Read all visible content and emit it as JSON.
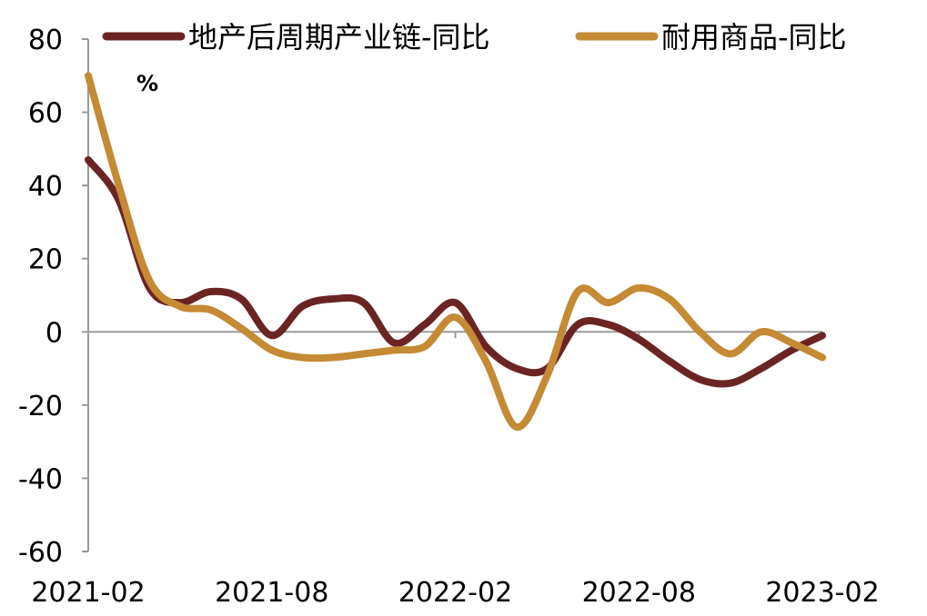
{
  "chart_data": {
    "type": "line",
    "title": "",
    "xlabel": "",
    "ylabel": "",
    "unit_label": "%",
    "ylim": [
      -60,
      80
    ],
    "yticks": [
      -60,
      -40,
      -20,
      0,
      20,
      40,
      60,
      80
    ],
    "ytick_labels": [
      "-60",
      "-40",
      "-20",
      "0",
      "20",
      "40",
      "60",
      "80"
    ],
    "xtick_labels": [
      "2021-02",
      "2021-08",
      "2022-02",
      "2022-08",
      "2023-02"
    ],
    "x": [
      "2021-02",
      "2021-03",
      "2021-04",
      "2021-05",
      "2021-06",
      "2021-07",
      "2021-08",
      "2021-09",
      "2021-10",
      "2021-11",
      "2021-12",
      "2022-01",
      "2022-02",
      "2022-03",
      "2022-04",
      "2022-05",
      "2022-06",
      "2022-07",
      "2022-08",
      "2022-09",
      "2022-10",
      "2022-11",
      "2022-12",
      "2023-01",
      "2023-02"
    ],
    "legend_position": "top",
    "grid": false,
    "series": [
      {
        "name": "地产后周期产业链-同比",
        "color": "#6B2424",
        "values": [
          47,
          36,
          12,
          8,
          11,
          9,
          -1,
          7,
          9,
          8,
          -3,
          2,
          8,
          -4,
          -10,
          -10,
          2,
          2,
          -2,
          -8,
          -13,
          -14,
          -10,
          -5,
          -1
        ]
      },
      {
        "name": "耐用商品-同比",
        "color": "#C48A34",
        "values": [
          70,
          40,
          14,
          7,
          6,
          1,
          -5,
          -7,
          -7,
          -6,
          -5,
          -4,
          4,
          -8,
          -26,
          -12,
          11,
          8,
          12,
          9,
          0,
          -6,
          0,
          -3,
          -7
        ]
      }
    ]
  }
}
